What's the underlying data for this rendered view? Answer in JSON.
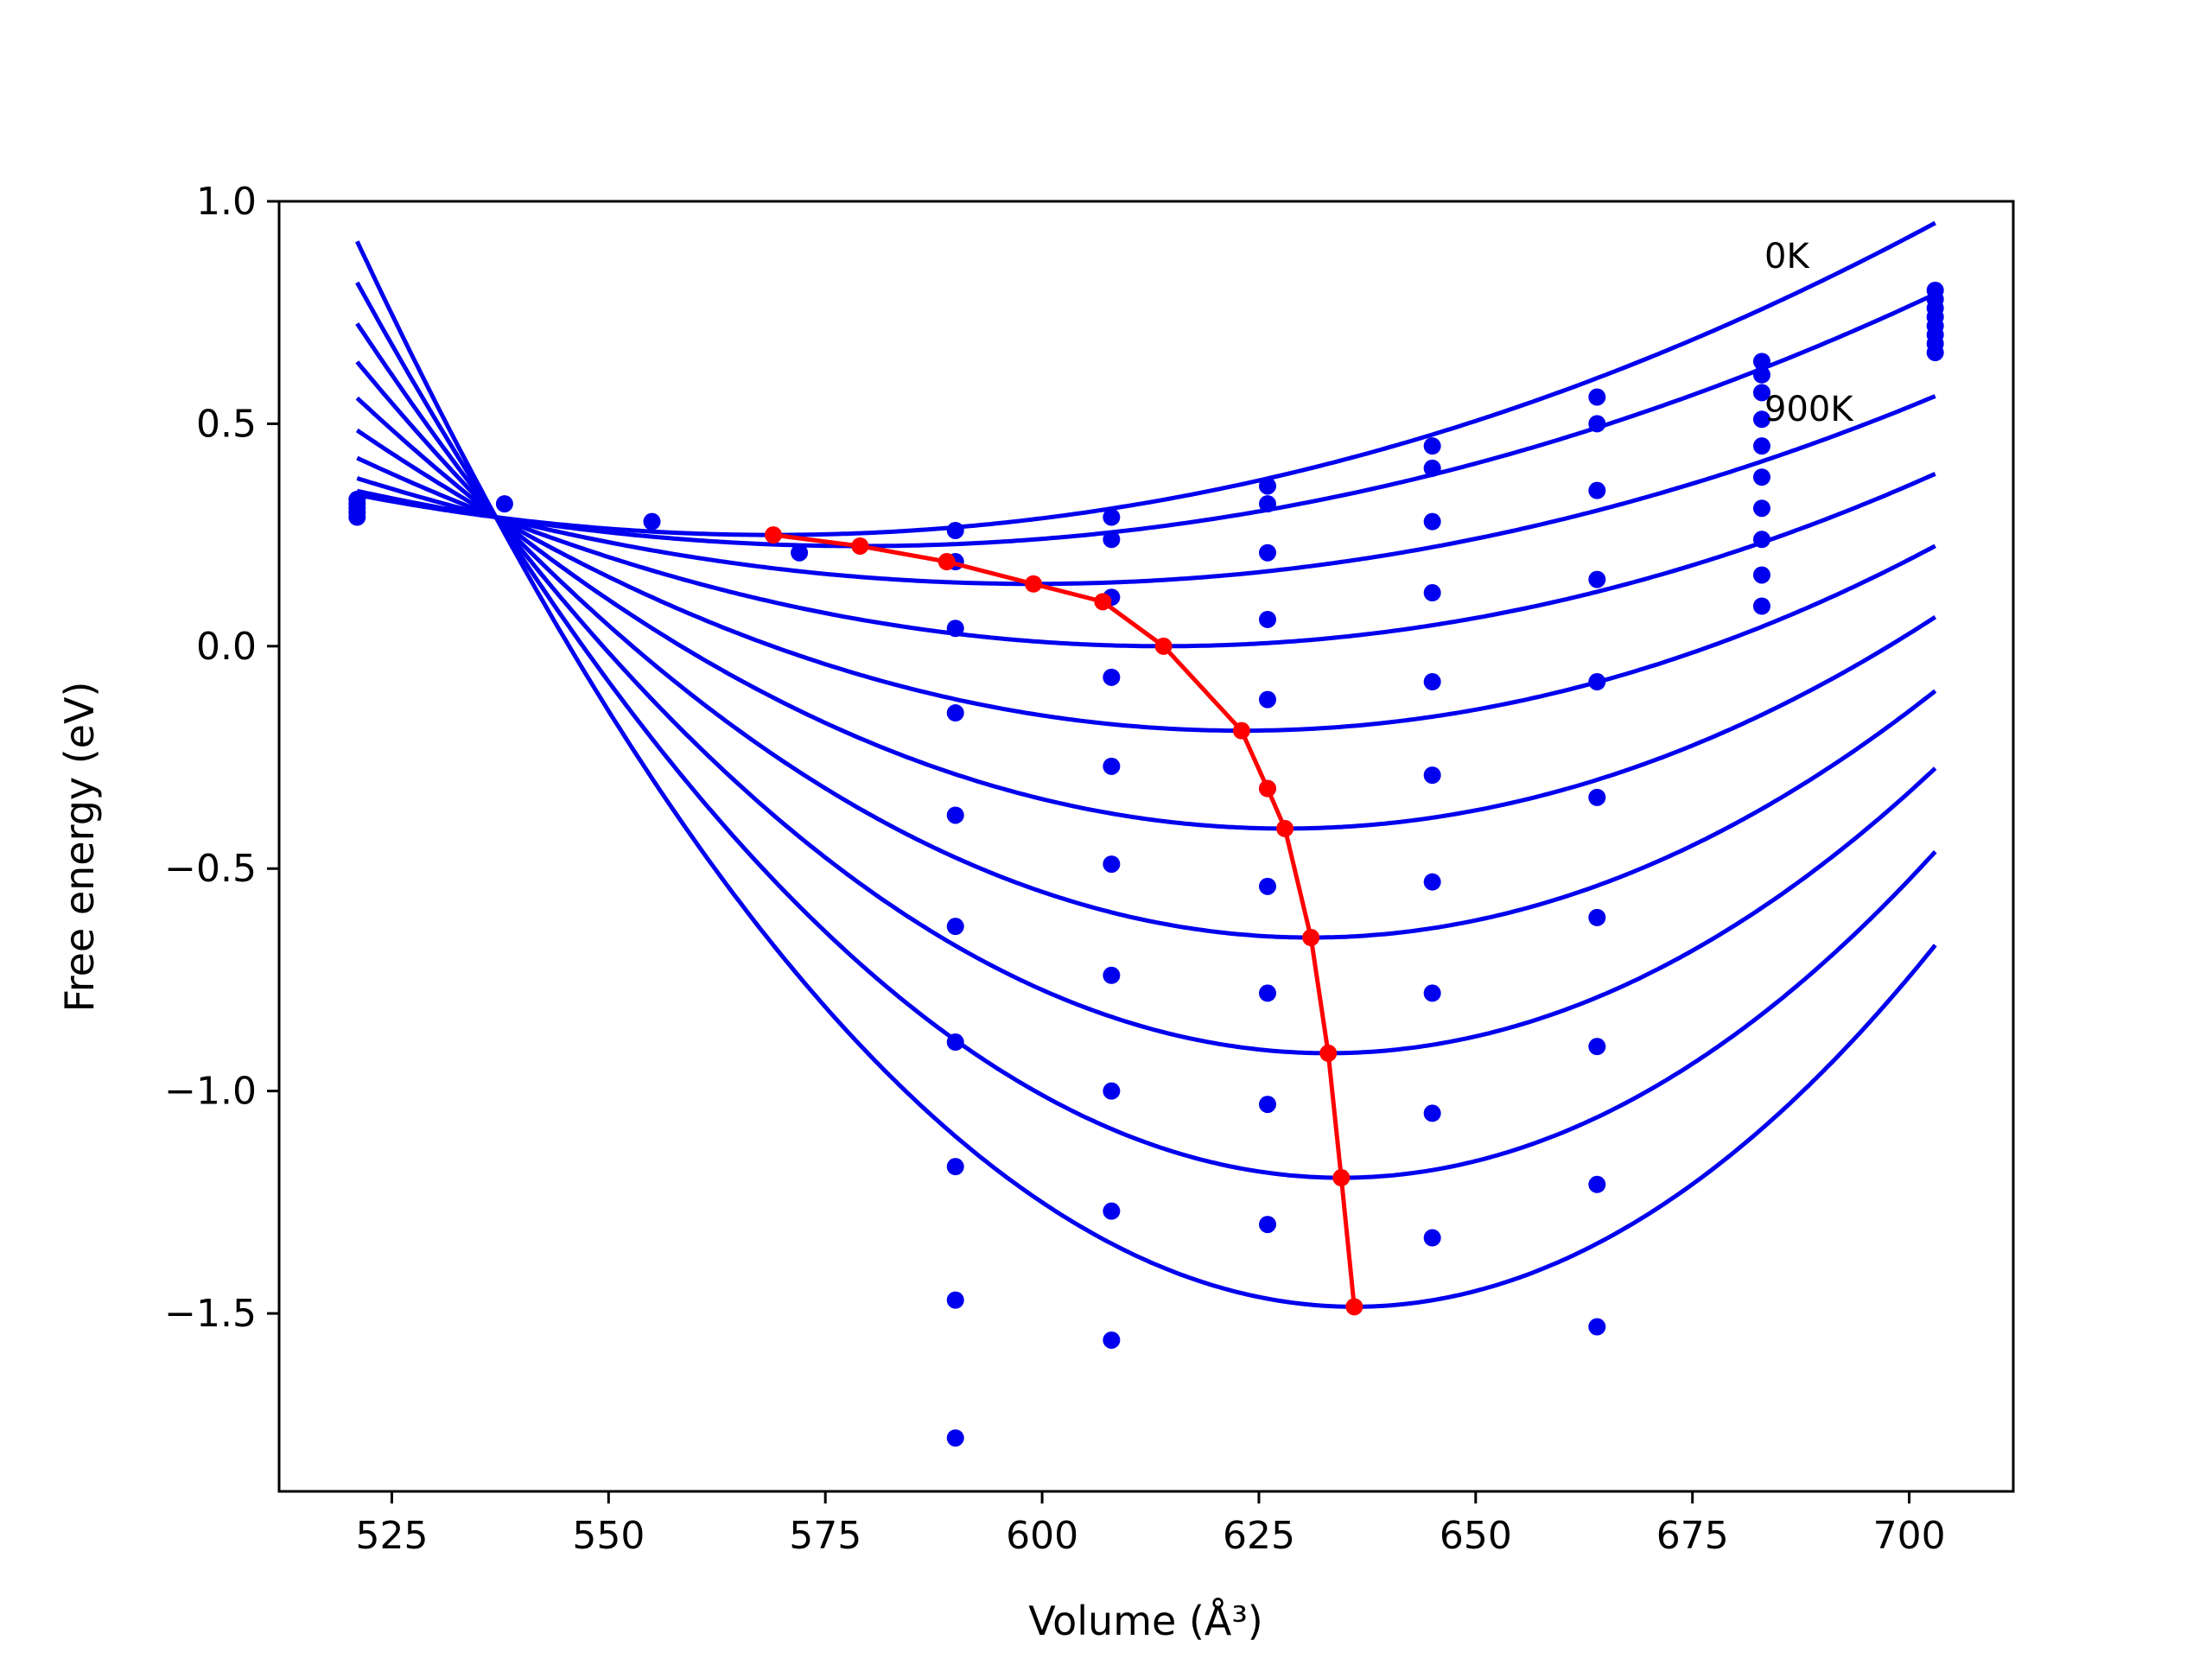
{
  "chart_data": {
    "type": "line",
    "title": "",
    "xlabel": "Volume (Å³)",
    "ylabel": "Free energy (eV)",
    "xlim": [
      512,
      712
    ],
    "ylim": [
      -1.9,
      1.0
    ],
    "xticks": [
      525,
      550,
      575,
      600,
      625,
      650,
      675,
      700
    ],
    "yticks": [
      1.0,
      0.5,
      0.0,
      -0.5,
      -1.0,
      -1.5
    ],
    "xtick_labels": [
      "525",
      "550",
      "575",
      "600",
      "625",
      "650",
      "675",
      "700"
    ],
    "ytick_labels": [
      "1.0",
      "0.5",
      "0.0",
      "−0.5",
      "−1.0",
      "−1.5"
    ],
    "grid": false,
    "fit_range": [
      521,
      703
    ],
    "annotations": [
      {
        "text": "0K",
        "x": 683,
        "y": 0.86
      },
      {
        "text": "900K",
        "x": 683,
        "y": 0.52
      }
    ],
    "colors": {
      "fit": "#0000ee",
      "points": "#0000ee",
      "minimum": "#ff0000",
      "axes": "#000000"
    },
    "fit_curves": [
      {
        "v0": 569,
        "e0": 0.25
      },
      {
        "v0": 579,
        "e0": 0.225
      },
      {
        "v0": 599,
        "e0": 0.14
      },
      {
        "v0": 614,
        "e0": 0.0
      },
      {
        "v0": 623,
        "e0": -0.19
      },
      {
        "v0": 628,
        "e0": -0.41
      },
      {
        "v0": 631,
        "e0": -0.655
      },
      {
        "v0": 633,
        "e0": -0.915
      },
      {
        "v0": 634.5,
        "e0": -1.195
      },
      {
        "v0": 636,
        "e0": -1.485
      }
    ],
    "minimum_curve": {
      "x": [
        569,
        579,
        589,
        599,
        607,
        614,
        623,
        626,
        628,
        631,
        633,
        634.5,
        636
      ],
      "y": [
        0.25,
        0.225,
        0.19,
        0.14,
        0.1,
        0.0,
        -0.19,
        -0.32,
        -0.41,
        -0.655,
        -0.915,
        -1.195,
        -1.485
      ]
    },
    "scatter_points": [
      [
        521,
        0.29
      ],
      [
        521,
        0.3
      ],
      [
        521,
        0.31
      ],
      [
        521,
        0.32
      ],
      [
        521,
        0.33
      ],
      [
        538,
        0.32
      ],
      [
        555,
        0.28
      ],
      [
        572,
        0.21
      ],
      [
        590,
        0.26
      ],
      [
        590,
        0.19
      ],
      [
        590,
        0.04
      ],
      [
        590,
        -0.15
      ],
      [
        590,
        -0.38
      ],
      [
        590,
        -0.63
      ],
      [
        590,
        -0.89
      ],
      [
        590,
        -1.17
      ],
      [
        590,
        -1.47
      ],
      [
        590,
        -1.78
      ],
      [
        608,
        0.29
      ],
      [
        608,
        0.24
      ],
      [
        608,
        0.11
      ],
      [
        608,
        -0.07
      ],
      [
        608,
        -0.27
      ],
      [
        608,
        -0.49
      ],
      [
        608,
        -0.74
      ],
      [
        608,
        -1.0
      ],
      [
        608,
        -1.27
      ],
      [
        608,
        -1.56
      ],
      [
        626,
        0.36
      ],
      [
        626,
        0.32
      ],
      [
        626,
        0.21
      ],
      [
        626,
        0.06
      ],
      [
        626,
        -0.12
      ],
      [
        626,
        -0.32
      ],
      [
        626,
        -0.54
      ],
      [
        626,
        -0.78
      ],
      [
        626,
        -1.03
      ],
      [
        626,
        -1.3
      ],
      [
        645,
        0.45
      ],
      [
        645,
        0.4
      ],
      [
        645,
        0.28
      ],
      [
        645,
        0.12
      ],
      [
        645,
        -0.08
      ],
      [
        645,
        -0.29
      ],
      [
        645,
        -0.53
      ],
      [
        645,
        -0.78
      ],
      [
        645,
        -1.05
      ],
      [
        645,
        -1.33
      ],
      [
        664,
        0.56
      ],
      [
        664,
        0.5
      ],
      [
        664,
        0.35
      ],
      [
        664,
        0.15
      ],
      [
        664,
        -0.08
      ],
      [
        664,
        -0.34
      ],
      [
        664,
        -0.61
      ],
      [
        664,
        -0.9
      ],
      [
        664,
        -1.21
      ],
      [
        664,
        -1.53
      ],
      [
        683,
        0.64
      ],
      [
        683,
        0.61
      ],
      [
        683,
        0.57
      ],
      [
        683,
        0.51
      ],
      [
        683,
        0.45
      ],
      [
        683,
        0.38
      ],
      [
        683,
        0.31
      ],
      [
        683,
        0.24
      ],
      [
        683,
        0.16
      ],
      [
        683,
        0.09
      ],
      [
        703,
        0.66
      ],
      [
        703,
        0.68
      ],
      [
        703,
        0.7
      ],
      [
        703,
        0.72
      ],
      [
        703,
        0.74
      ],
      [
        703,
        0.76
      ],
      [
        703,
        0.78
      ],
      [
        703,
        0.8
      ]
    ]
  }
}
